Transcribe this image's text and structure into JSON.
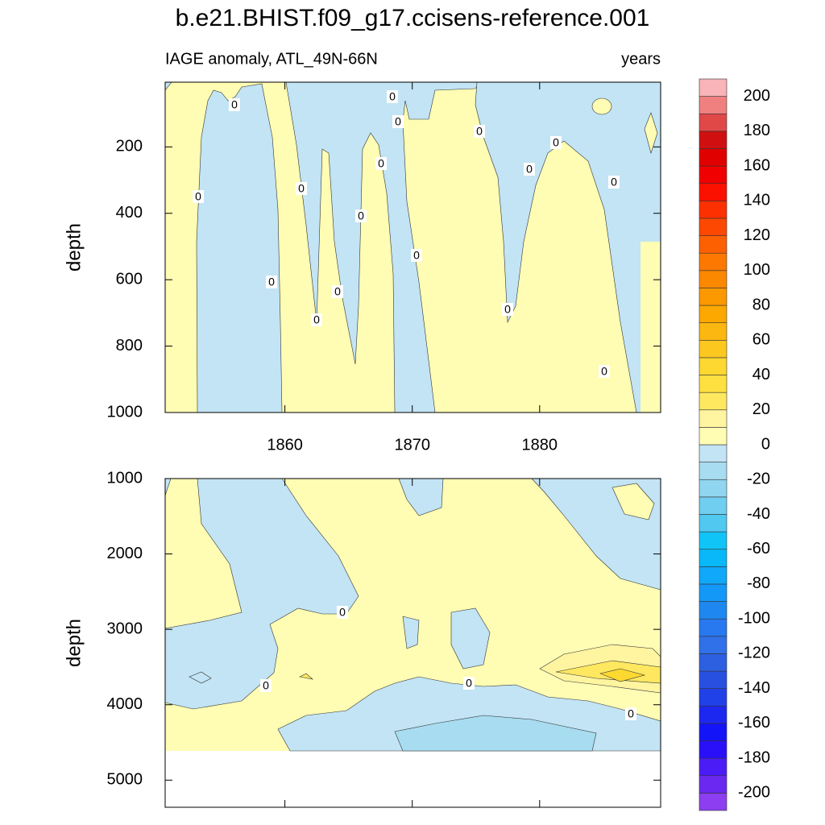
{
  "chart_data": {
    "type": "contour",
    "title": "b.e21.BHIST.f09_g17.ccisens-reference.001",
    "subtitle_left": "IAGE anomaly, ATL_49N-66N",
    "subtitle_right": "years",
    "contour_label": "0",
    "xlim": [
      1850.6,
      1889.5
    ],
    "xticks": [
      1860,
      1870,
      1880
    ],
    "panels": [
      {
        "ylabel": "depth",
        "ylim": [
          5,
          1000
        ],
        "yticks": [
          200,
          400,
          600,
          800,
          1000
        ]
      },
      {
        "ylabel": "depth",
        "ylim": [
          1000,
          5360
        ],
        "yticks": [
          1000,
          2000,
          3000,
          4000,
          5000
        ]
      }
    ],
    "colorbar": {
      "bounds": [
        -210,
        -200,
        -190,
        -180,
        -170,
        -160,
        -150,
        -140,
        -130,
        -120,
        -110,
        -100,
        -90,
        -80,
        -70,
        -60,
        -50,
        -40,
        -30,
        -20,
        -10,
        0,
        10,
        20,
        30,
        40,
        50,
        60,
        70,
        80,
        90,
        100,
        110,
        120,
        130,
        140,
        150,
        160,
        170,
        180,
        190,
        200,
        210
      ],
      "colors": [
        "#8c3ef0",
        "#6a28f0",
        "#4b1cf5",
        "#2a10f8",
        "#1414f8",
        "#1c28f0",
        "#2040e8",
        "#2850e0",
        "#2c60e0",
        "#3070e8",
        "#2878f0",
        "#1e88f0",
        "#1498f8",
        "#10a8f8",
        "#08b8f8",
        "#10c4f8",
        "#50c8f0",
        "#70cef0",
        "#90d6f0",
        "#a8dcf0",
        "#c2e4f4",
        "#fffcb4",
        "#fff4a0",
        "#fee860",
        "#fee040",
        "#fcd830",
        "#fcc820",
        "#fcb810",
        "#fca800",
        "#fc9800",
        "#fc8800",
        "#fc7800",
        "#fc6000",
        "#fc4800",
        "#fc3000",
        "#fc1000",
        "#f00000",
        "#e00000",
        "#d01010",
        "#e04848",
        "#f08080",
        "#f8b4b8"
      ],
      "ticks": [
        -200,
        -180,
        -160,
        -140,
        -120,
        -100,
        -80,
        -60,
        -40,
        -20,
        0,
        20,
        40,
        60,
        80,
        100,
        120,
        140,
        160,
        180,
        200
      ]
    }
  }
}
